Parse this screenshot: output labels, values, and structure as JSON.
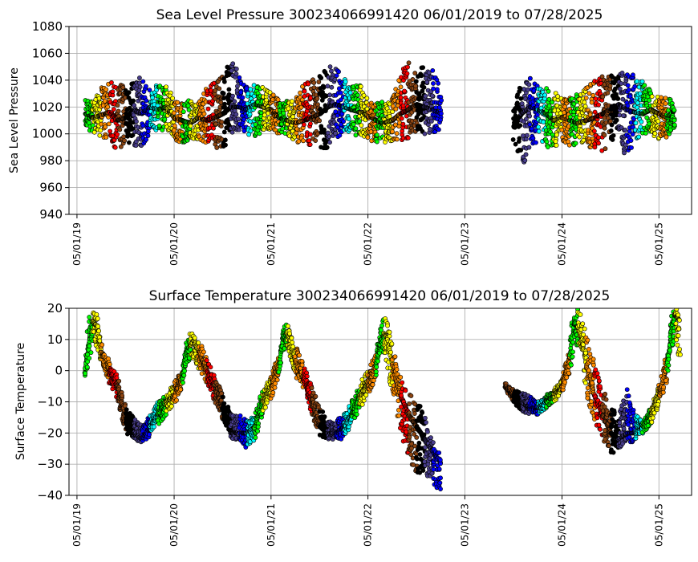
{
  "chart_data": [
    {
      "type": "scatter",
      "title": "Sea Level Pressure 300234066991420  06/01/2019 to 07/28/2025",
      "xlabel": "",
      "ylabel": "Sea Level Pressure",
      "ylim": [
        940,
        1080
      ],
      "yticks": [
        940,
        960,
        980,
        1000,
        1020,
        1040,
        1060,
        1080
      ],
      "xlim": [
        "2019-04-01",
        "2025-09-01"
      ],
      "xticks": [
        {
          "date": "2019-05-01",
          "label": "05/01/19"
        },
        {
          "date": "2020-05-01",
          "label": "05/01/20"
        },
        {
          "date": "2021-05-01",
          "label": "05/01/21"
        },
        {
          "date": "2022-05-01",
          "label": "05/01/22"
        },
        {
          "date": "2023-05-01",
          "label": "05/01/23"
        },
        {
          "date": "2024-05-01",
          "label": "05/01/24"
        },
        {
          "date": "2025-05-01",
          "label": "05/01/25"
        }
      ],
      "grid": true,
      "month_colors": [
        "#00ff00",
        "#ffff00",
        "#ff8c00",
        "#ff0000",
        "#8b4513",
        "#000000",
        "#483d8b",
        "#0000ff",
        "#00ffff",
        "#00ff00",
        "#ffff00",
        "#ff8c00"
      ],
      "series": [
        {
          "x": [
            "2019-06-01",
            "2019-07-01",
            "2019-08-01",
            "2019-09-01",
            "2019-10-01",
            "2019-11-01",
            "2019-12-01",
            "2020-01-01",
            "2020-02-01",
            "2020-03-01",
            "2020-04-01",
            "2020-05-01",
            "2020-06-01",
            "2020-07-01",
            "2020-08-01",
            "2020-09-01",
            "2020-10-01",
            "2020-11-01",
            "2020-12-01",
            "2021-01-01",
            "2021-02-01",
            "2021-03-01",
            "2021-04-01",
            "2021-05-01",
            "2021-06-01",
            "2021-07-01",
            "2021-08-01",
            "2021-09-01",
            "2021-10-01",
            "2021-11-01",
            "2021-12-01",
            "2022-01-01",
            "2022-02-01",
            "2022-03-01",
            "2022-04-01",
            "2022-05-01",
            "2022-06-01",
            "2022-07-01",
            "2022-08-01",
            "2022-09-01",
            "2022-10-01",
            "2022-11-01",
            "2022-12-01",
            "2023-01-01",
            "2023-02-01"
          ],
          "y": [
            1015,
            1012,
            1014,
            1016,
            1010,
            1012,
            1018,
            1015,
            1020,
            1018,
            1020,
            1012,
            1010,
            1008,
            1012,
            1010,
            1012,
            1015,
            1020,
            1020,
            1018,
            1022,
            1020,
            1018,
            1012,
            1010,
            1008,
            1010,
            1012,
            1015,
            1020,
            1022,
            1020,
            1018,
            1016,
            1014,
            1010,
            1008,
            1010,
            1015,
            1018,
            1022,
            1020,
            1018,
            1015
          ],
          "low": [
            1003,
            1002,
            997,
            995,
            987,
            995,
            988,
            990,
            1000,
            1002,
            1003,
            996,
            993,
            995,
            996,
            993,
            990,
            988,
            998,
            1002,
            1000,
            996,
            1003,
            1002,
            1000,
            997,
            995,
            991,
            992,
            990,
            985,
            995,
            1000,
            1000,
            998,
            995,
            993,
            993,
            995,
            995,
            995,
            1003,
            1000,
            1000,
            1000
          ],
          "high": [
            1025,
            1025,
            1035,
            1038,
            1040,
            1036,
            1040,
            1045,
            1036,
            1036,
            1038,
            1025,
            1025,
            1026,
            1023,
            1036,
            1040,
            1046,
            1056,
            1044,
            1040,
            1038,
            1035,
            1031,
            1025,
            1025,
            1026,
            1038,
            1040,
            1044,
            1054,
            1051,
            1041,
            1036,
            1036,
            1028,
            1023,
            1026,
            1026,
            1046,
            1056,
            1041,
            1055,
            1051,
            1032
          ]
        },
        {
          "x": [
            "2023-11-01",
            "2023-12-01",
            "2024-01-01",
            "2024-02-01",
            "2024-03-01",
            "2024-04-01",
            "2024-05-01",
            "2024-06-01",
            "2024-07-01",
            "2024-08-01",
            "2024-09-01",
            "2024-10-01",
            "2024-11-01",
            "2024-12-01",
            "2025-01-01",
            "2025-02-01",
            "2025-03-01",
            "2025-04-01",
            "2025-05-01",
            "2025-06-01",
            "2025-07-01"
          ],
          "y": [
            1005,
            1015,
            1020,
            1018,
            1015,
            1010,
            1012,
            1010,
            1008,
            1010,
            1012,
            1015,
            1018,
            1022,
            1018,
            1016,
            1015,
            1018,
            1015,
            1012,
            1018
          ],
          "low": [
            995,
            975,
            990,
            995,
            990,
            990,
            995,
            990,
            993,
            990,
            990,
            987,
            992,
            995,
            981,
            996,
            998,
            1000,
            995,
            997,
            1005
          ],
          "high": [
            1020,
            1042,
            1042,
            1036,
            1036,
            1031,
            1030,
            1028,
            1030,
            1035,
            1040,
            1043,
            1044,
            1044,
            1048,
            1043,
            1040,
            1032,
            1030,
            1026,
            1027
          ]
        }
      ]
    },
    {
      "type": "scatter",
      "title": "Surface Temperature 300234066991420  06/01/2019 to 07/28/2025",
      "xlabel": "",
      "ylabel": "Surface Temperature",
      "ylim": [
        -40,
        20
      ],
      "yticks": [
        -40,
        -30,
        -20,
        -10,
        0,
        10,
        20
      ],
      "xlim": [
        "2019-04-01",
        "2025-09-01"
      ],
      "xticks": [
        {
          "date": "2019-05-01",
          "label": "05/01/19"
        },
        {
          "date": "2020-05-01",
          "label": "05/01/20"
        },
        {
          "date": "2021-05-01",
          "label": "05/01/21"
        },
        {
          "date": "2022-05-01",
          "label": "05/01/22"
        },
        {
          "date": "2023-05-01",
          "label": "05/01/23"
        },
        {
          "date": "2024-05-01",
          "label": "05/01/24"
        },
        {
          "date": "2025-05-01",
          "label": "05/01/25"
        }
      ],
      "grid": true,
      "month_colors": [
        "#00ff00",
        "#ffff00",
        "#ff8c00",
        "#ff0000",
        "#8b4513",
        "#000000",
        "#483d8b",
        "#0000ff",
        "#00ffff",
        "#00ff00",
        "#ffff00",
        "#ff8c00"
      ],
      "series": [
        {
          "x": [
            "2019-06-01",
            "2019-06-15",
            "2019-07-01",
            "2019-07-15",
            "2019-08-01",
            "2019-08-15",
            "2019-09-01",
            "2019-10-01",
            "2019-11-01",
            "2019-12-01",
            "2020-01-01",
            "2020-02-01",
            "2020-03-01",
            "2020-04-01",
            "2020-05-01",
            "2020-06-01",
            "2020-06-15",
            "2020-07-01",
            "2020-07-15",
            "2020-08-01",
            "2020-09-01",
            "2020-10-01",
            "2020-11-01",
            "2020-12-01",
            "2021-01-01",
            "2021-02-01",
            "2021-03-01",
            "2021-04-01",
            "2021-05-01",
            "2021-06-01",
            "2021-06-15",
            "2021-07-01",
            "2021-07-15",
            "2021-08-01",
            "2021-09-01",
            "2021-10-01",
            "2021-11-01",
            "2021-12-01",
            "2022-01-01",
            "2022-02-01",
            "2022-03-01",
            "2022-04-01",
            "2022-05-01",
            "2022-06-01",
            "2022-06-15",
            "2022-07-01",
            "2022-07-15",
            "2022-08-01",
            "2022-09-01",
            "2022-10-01",
            "2022-11-01",
            "2022-12-01",
            "2023-01-01",
            "2023-02-01"
          ],
          "y": [
            0,
            8,
            16,
            14,
            6,
            4,
            0,
            -5,
            -15,
            -20,
            -22,
            -18,
            -14,
            -10,
            -8,
            -2,
            6,
            8,
            10,
            6,
            0,
            -5,
            -12,
            -20,
            -20,
            -20,
            -18,
            -10,
            -5,
            2,
            10,
            12,
            8,
            3,
            -3,
            -10,
            -18,
            -20,
            -20,
            -18,
            -14,
            -8,
            -4,
            2,
            8,
            12,
            10,
            2,
            -8,
            -14,
            -18,
            -22,
            -26,
            -30
          ],
          "low": [
            -2,
            2,
            8,
            8,
            2,
            0,
            -4,
            -10,
            -20,
            -22,
            -23,
            -21,
            -18,
            -14,
            -11,
            -6,
            2,
            4,
            4,
            0,
            -4,
            -10,
            -16,
            -22,
            -22,
            -25,
            -22,
            -14,
            -9,
            -2,
            6,
            8,
            4,
            -2,
            -6,
            -14,
            -21,
            -22,
            -22,
            -22,
            -18,
            -12,
            -8,
            -2,
            4,
            6,
            0,
            -8,
            -20,
            -28,
            -33,
            -34,
            -36,
            -39
          ],
          "high": [
            2,
            18,
            20,
            18,
            10,
            6,
            3,
            -2,
            -12,
            -15,
            -18,
            -14,
            -10,
            -8,
            -4,
            1,
            9,
            12,
            12,
            10,
            4,
            -2,
            -8,
            -14,
            -14,
            -16,
            -14,
            -6,
            -2,
            6,
            13,
            16,
            12,
            8,
            2,
            -5,
            -12,
            -16,
            -16,
            -14,
            -10,
            -4,
            0,
            6,
            13,
            18,
            15,
            8,
            -2,
            -6,
            -10,
            -14,
            -22,
            -28
          ]
        },
        {
          "x": [
            "2023-10-01",
            "2023-11-01",
            "2023-12-01",
            "2024-01-01",
            "2024-02-01",
            "2024-03-01",
            "2024-04-01",
            "2024-05-01",
            "2024-06-01",
            "2024-06-15",
            "2024-07-01",
            "2024-07-15",
            "2024-08-01",
            "2024-09-01",
            "2024-10-01",
            "2024-11-01",
            "2024-12-01",
            "2025-01-01",
            "2025-02-01",
            "2025-03-01",
            "2025-04-01",
            "2025-05-01",
            "2025-06-01",
            "2025-06-15",
            "2025-07-01",
            "2025-07-20"
          ],
          "y": [
            -5,
            -8,
            -10,
            -12,
            -12,
            -10,
            -8,
            -5,
            5,
            15,
            14,
            10,
            2,
            -8,
            -14,
            -20,
            -22,
            -20,
            -20,
            -18,
            -14,
            -8,
            2,
            12,
            18,
            16
          ],
          "low": [
            -6,
            -10,
            -13,
            -14,
            -14,
            -12,
            -10,
            -7,
            0,
            8,
            8,
            2,
            -8,
            -16,
            -22,
            -27,
            -27,
            -24,
            -22,
            -20,
            -17,
            -11,
            -3,
            6,
            12,
            2
          ],
          "high": [
            -4,
            -6,
            -7,
            -8,
            -10,
            -8,
            -6,
            -3,
            10,
            20,
            20,
            18,
            12,
            2,
            -6,
            -12,
            -14,
            -6,
            -14,
            -16,
            -12,
            -5,
            6,
            18,
            20,
            20
          ]
        }
      ]
    }
  ]
}
